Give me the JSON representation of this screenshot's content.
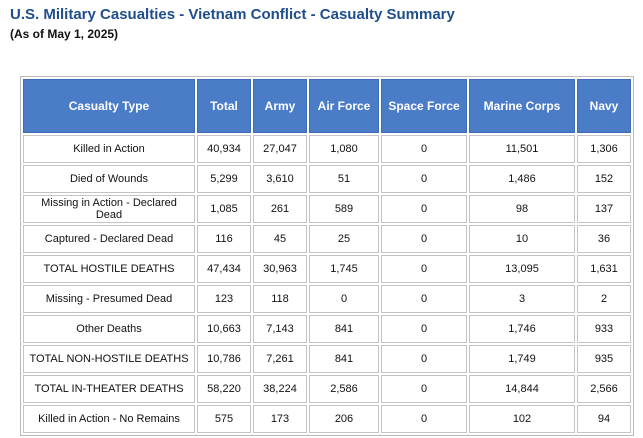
{
  "header": {
    "title": "U.S. Military Casualties - Vietnam Conflict - Casualty Summary",
    "subtitle": "(As of May 1, 2025)"
  },
  "table": {
    "columns": [
      "Casualty Type",
      "Total",
      "Army",
      "Air Force",
      "Space Force",
      "Marine Corps",
      "Navy"
    ],
    "rows": [
      [
        "Killed in Action",
        "40,934",
        "27,047",
        "1,080",
        "0",
        "11,501",
        "1,306"
      ],
      [
        "Died of Wounds",
        "5,299",
        "3,610",
        "51",
        "0",
        "1,486",
        "152"
      ],
      [
        "Missing in Action - Declared Dead",
        "1,085",
        "261",
        "589",
        "0",
        "98",
        "137"
      ],
      [
        "Captured - Declared Dead",
        "116",
        "45",
        "25",
        "0",
        "10",
        "36"
      ],
      [
        "TOTAL HOSTILE DEATHS",
        "47,434",
        "30,963",
        "1,745",
        "0",
        "13,095",
        "1,631"
      ],
      [
        "Missing - Presumed Dead",
        "123",
        "118",
        "0",
        "0",
        "3",
        "2"
      ],
      [
        "Other Deaths",
        "10,663",
        "7,143",
        "841",
        "0",
        "1,746",
        "933"
      ],
      [
        "TOTAL NON-HOSTILE DEATHS",
        "10,786",
        "7,261",
        "841",
        "0",
        "1,749",
        "935"
      ],
      [
        "TOTAL IN-THEATER DEATHS",
        "58,220",
        "38,224",
        "2,586",
        "0",
        "14,844",
        "2,566"
      ],
      [
        "Killed in Action - No Remains",
        "575",
        "173",
        "206",
        "0",
        "102",
        "94"
      ]
    ]
  }
}
